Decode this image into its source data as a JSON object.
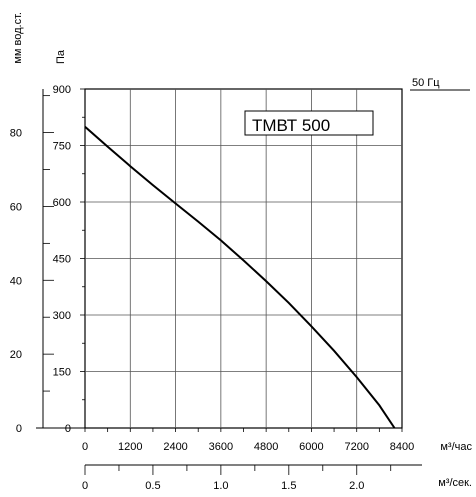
{
  "chart_data": {
    "type": "line",
    "model_label": "ТМВТ 500",
    "frequency_label": "50 Гц",
    "x_primary": {
      "unit": "м³/час",
      "range": [
        0,
        8400
      ],
      "ticks": [
        "0",
        "1200",
        "2400",
        "3600",
        "4800",
        "6000",
        "7200",
        "8400"
      ],
      "tick_values": [
        0,
        1200,
        2400,
        3600,
        4800,
        6000,
        7200,
        8400
      ]
    },
    "x_secondary": {
      "unit": "м³/сек.",
      "range": [
        0,
        2.333
      ],
      "ticks": [
        "0",
        "0.5",
        "1.0",
        "1.5",
        "2.0"
      ],
      "tick_values": [
        0,
        0.5,
        1.0,
        1.5,
        2.0
      ]
    },
    "y_primary": {
      "unit": "Па",
      "range": [
        0,
        900
      ],
      "ticks": [
        "0",
        "150",
        "300",
        "450",
        "600",
        "750",
        "900"
      ],
      "tick_values": [
        0,
        150,
        300,
        450,
        600,
        750,
        900
      ]
    },
    "y_secondary": {
      "unit": "мм вод.ст.",
      "range": [
        0,
        91.8
      ],
      "ticks": [
        "0",
        "20",
        "40",
        "60",
        "80"
      ],
      "tick_values": [
        0,
        20,
        40,
        60,
        80
      ]
    },
    "grid": true,
    "series": [
      {
        "x": [
          0,
          600,
          1200,
          1800,
          2400,
          3000,
          3600,
          4200,
          4800,
          5400,
          6000,
          6600,
          7200,
          7800,
          8200
        ],
        "y": [
          800,
          747,
          695,
          645,
          596,
          548,
          498,
          445,
          390,
          332,
          270,
          205,
          135,
          60,
          0
        ]
      }
    ],
    "line_color": "#000000"
  }
}
